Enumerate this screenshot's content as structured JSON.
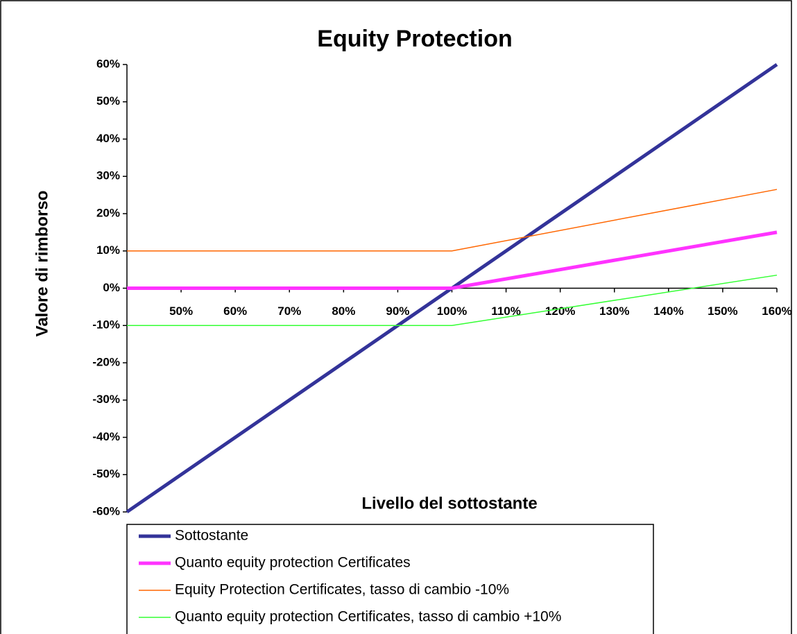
{
  "chart_data": {
    "type": "line",
    "title": "Equity Protection",
    "x_label": "Livello del sottostante",
    "y_label": "Valore di rimborso",
    "x": [
      40,
      100,
      160
    ],
    "series": [
      {
        "name": "Sottostante",
        "color": "#333399",
        "values": [
          -60,
          0,
          60
        ]
      },
      {
        "name": "Quanto equity protection Certificates",
        "color": "#ff33ff",
        "values": [
          0,
          0,
          15
        ]
      },
      {
        "name": "Equity Protection Certificates, tasso di cambio -10%",
        "color": "#ff6600",
        "values": [
          10,
          10,
          26.5
        ]
      },
      {
        "name": "Quanto equity protection Certificates, tasso di cambio +10%",
        "color": "#33ff33",
        "values": [
          -10,
          -10,
          3.5
        ]
      }
    ],
    "xlim": [
      40,
      160
    ],
    "xticks": [
      {
        "value": 50,
        "label": "50%"
      },
      {
        "value": 60,
        "label": "60%"
      },
      {
        "value": 70,
        "label": "70%"
      },
      {
        "value": 80,
        "label": "80%"
      },
      {
        "value": 90,
        "label": "90%"
      },
      {
        "value": 100,
        "label": "100%"
      },
      {
        "value": 110,
        "label": "110%"
      },
      {
        "value": 120,
        "label": "120%"
      },
      {
        "value": 130,
        "label": "130%"
      },
      {
        "value": 140,
        "label": "140%"
      },
      {
        "value": 150,
        "label": "150%"
      },
      {
        "value": 160,
        "label": "160%"
      }
    ],
    "ylim": [
      -60,
      60
    ],
    "yticks": [
      {
        "value": -60,
        "label": "-60%"
      },
      {
        "value": -50,
        "label": "-50%"
      },
      {
        "value": -40,
        "label": "-40%"
      },
      {
        "value": -30,
        "label": "-30%"
      },
      {
        "value": -20,
        "label": "-20%"
      },
      {
        "value": -10,
        "label": "-10%"
      },
      {
        "value": 0,
        "label": "0%"
      },
      {
        "value": 10,
        "label": "10%"
      },
      {
        "value": 20,
        "label": "20%"
      },
      {
        "value": 30,
        "label": "30%"
      },
      {
        "value": 40,
        "label": "40%"
      },
      {
        "value": 50,
        "label": "50%"
      },
      {
        "value": 60,
        "label": "60%"
      }
    ],
    "grid": false,
    "legend": "bottom-left"
  }
}
